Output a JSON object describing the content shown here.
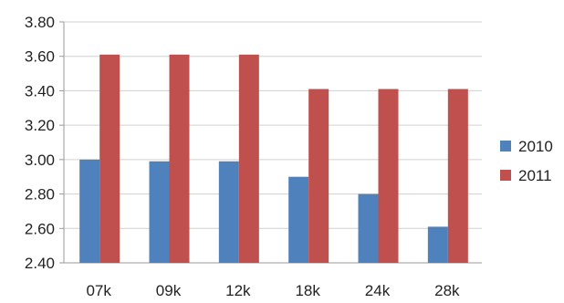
{
  "chart_data": {
    "type": "bar",
    "categories": [
      "07k",
      "09k",
      "12k",
      "18k",
      "24k",
      "28k"
    ],
    "series": [
      {
        "name": "2010",
        "values": [
          3.0,
          2.99,
          2.99,
          2.9,
          2.8,
          2.61
        ],
        "color": "#4f81bd"
      },
      {
        "name": "2011",
        "values": [
          3.61,
          3.61,
          3.61,
          3.41,
          3.41,
          3.41
        ],
        "color": "#c0504d"
      }
    ],
    "ylim": [
      2.4,
      3.8
    ],
    "yticks": [
      "2.40",
      "2.60",
      "2.80",
      "3.00",
      "3.20",
      "3.40",
      "3.60",
      "3.80"
    ],
    "grid": true,
    "legend_position": "right"
  }
}
